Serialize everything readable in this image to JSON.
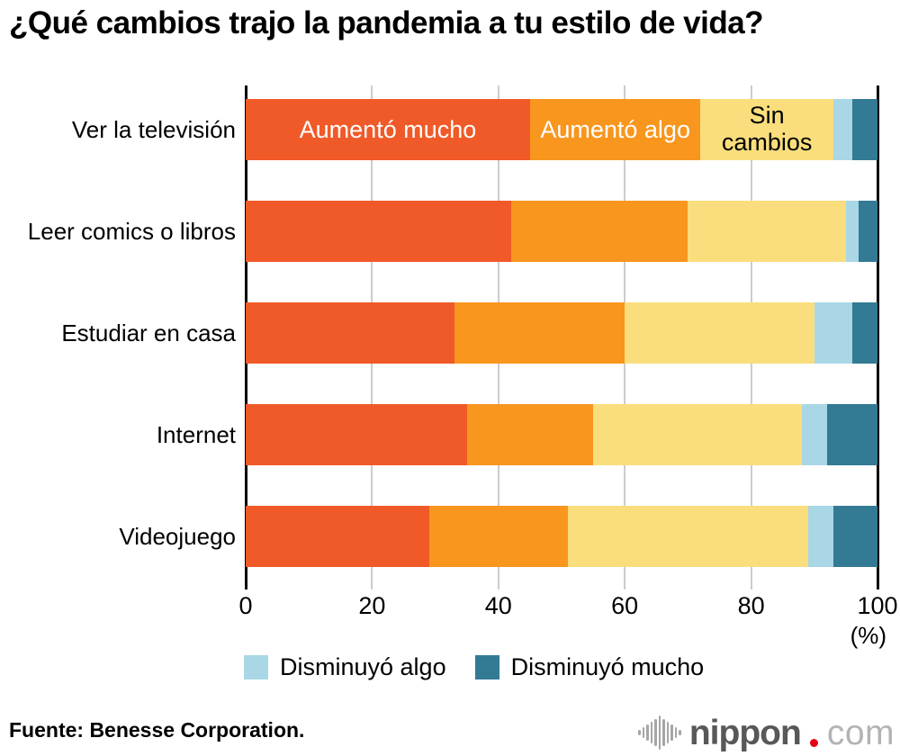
{
  "title": "¿Qué cambios trajo la pandemia a tu estilo de vida?",
  "chart_data": {
    "type": "bar",
    "stacked": true,
    "orientation": "horizontal",
    "title": "¿Qué cambios trajo la pandemia a tu estilo de vida?",
    "categories": [
      "Ver la televisión",
      "Leer comics o libros",
      "Estudiar en casa",
      "Internet",
      "Videojuego"
    ],
    "series": [
      {
        "name": "Aumentó mucho",
        "color": "#F05A28",
        "text_color": "#FFFFFF",
        "label_in_first_bar": true,
        "values": [
          45,
          42,
          33,
          35,
          29
        ]
      },
      {
        "name": "Aumentó algo",
        "color": "#F8961E",
        "text_color": "#FFFFFF",
        "label_in_first_bar": true,
        "values": [
          27,
          28,
          27,
          20,
          22
        ]
      },
      {
        "name": "Sin cambios",
        "color": "#FADE7D",
        "text_color": "#000000",
        "label_in_first_bar": true,
        "label_wrap": true,
        "values": [
          21,
          25,
          30,
          33,
          38
        ]
      },
      {
        "name": "Disminuyó algo",
        "color": "#A9D7E5",
        "values": [
          3,
          2,
          6,
          4,
          4
        ]
      },
      {
        "name": "Disminuyó mucho",
        "color": "#337A94",
        "values": [
          4,
          3,
          4,
          8,
          7
        ]
      }
    ],
    "xlim": [
      0,
      100
    ],
    "x_ticks": [
      "0",
      "20",
      "40",
      "60",
      "80",
      "100"
    ],
    "x_unit": "(%)",
    "grid": true,
    "legend_position": "bottom",
    "legend": [
      {
        "label": "Disminuyó algo",
        "color": "#A9D7E5"
      },
      {
        "label": "Disminuyó mucho",
        "color": "#337A94"
      }
    ]
  },
  "footer": {
    "source": "Fuente: Benesse Corporation."
  },
  "logo": {
    "icon": "waveform-icon",
    "name": "nippon",
    "dot": ".",
    "tld": "com",
    "name_color": "#595757",
    "tld_color": "#B1B3B4",
    "dot_color": "#E60012"
  }
}
